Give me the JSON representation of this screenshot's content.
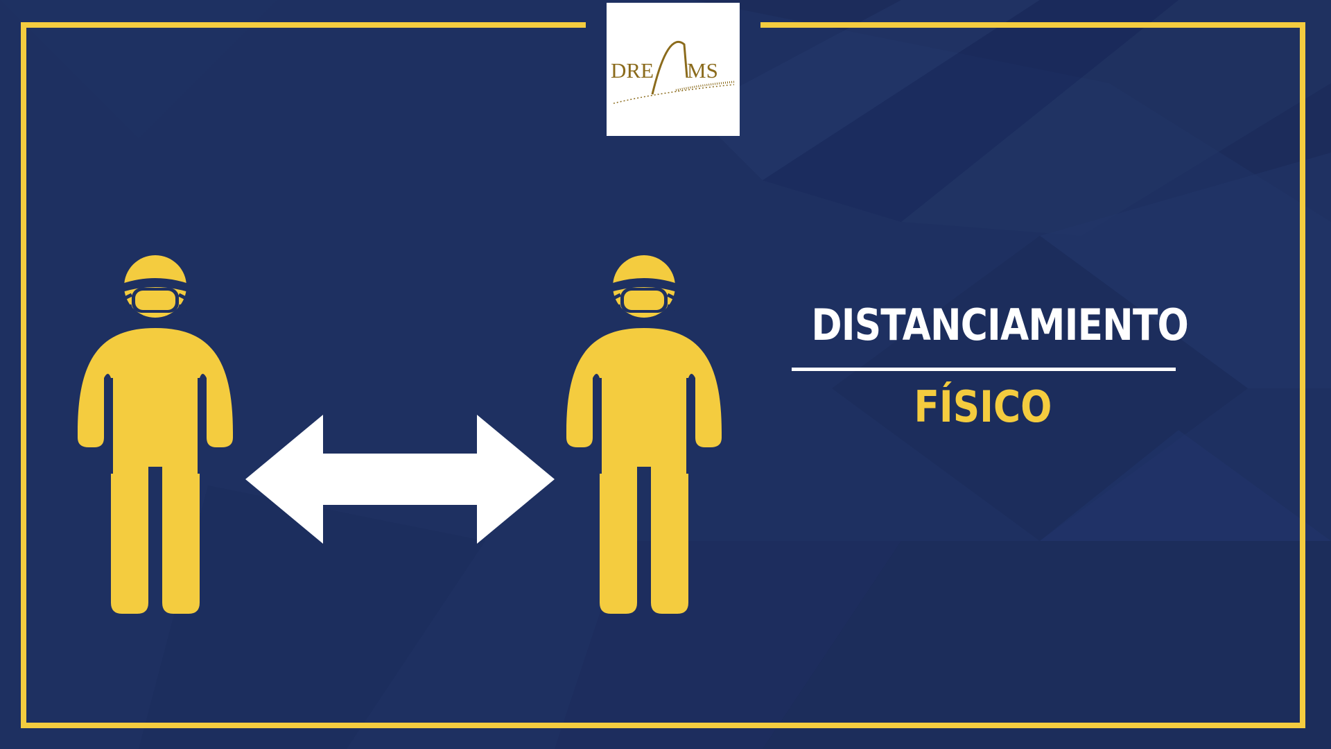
{
  "logo": {
    "text": "DREAMS",
    "left_text": "DRE",
    "right_text": "MS"
  },
  "sign": {
    "title": "DISTANCIAMIENTO",
    "subtitle": "FÍSICO"
  },
  "colors": {
    "background": "#1e3060",
    "frame": "#f4cc3f",
    "figure": "#f4cc3f",
    "arrow": "#ffffff",
    "title": "#ffffff",
    "subtitle": "#f4cc3f",
    "logo_gold": "#8b6b1c"
  },
  "icons": {
    "person_left": "masked-person-icon",
    "person_right": "masked-person-icon",
    "arrow": "double-headed-arrow-icon"
  }
}
